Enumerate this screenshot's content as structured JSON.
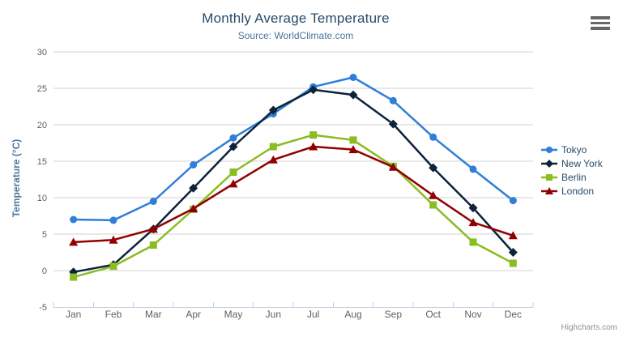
{
  "header": {
    "title": "Monthly Average Temperature",
    "subtitle": "Source: WorldClimate.com"
  },
  "credits": "Highcharts.com",
  "export_menu": {
    "icon": "hamburger-icon"
  },
  "chart_data": {
    "type": "line",
    "title": "Monthly Average Temperature",
    "subtitle": "Source: WorldClimate.com",
    "categories": [
      "Jan",
      "Feb",
      "Mar",
      "Apr",
      "May",
      "Jun",
      "Jul",
      "Aug",
      "Sep",
      "Oct",
      "Nov",
      "Dec"
    ],
    "xlabel": "",
    "ylabel": "Temperature (°C)",
    "ylim": [
      -5,
      30
    ],
    "ytick_interval": 5,
    "grid": "horizontal",
    "legend_position": "right",
    "series": [
      {
        "name": "Tokyo",
        "color": "#2f7ed8",
        "marker": "circle",
        "values": [
          7.0,
          6.9,
          9.5,
          14.5,
          18.2,
          21.5,
          25.2,
          26.5,
          23.3,
          18.3,
          13.9,
          9.6
        ]
      },
      {
        "name": "New York",
        "color": "#0d233a",
        "marker": "diamond",
        "values": [
          -0.2,
          0.8,
          5.7,
          11.3,
          17.0,
          22.0,
          24.8,
          24.1,
          20.1,
          14.1,
          8.6,
          2.5
        ]
      },
      {
        "name": "Berlin",
        "color": "#8bbc21",
        "marker": "square",
        "values": [
          -0.9,
          0.6,
          3.5,
          8.4,
          13.5,
          17.0,
          18.6,
          17.9,
          14.3,
          9.0,
          3.9,
          1.0
        ]
      },
      {
        "name": "London",
        "color": "#910000",
        "marker": "triangle",
        "values": [
          3.9,
          4.2,
          5.7,
          8.5,
          11.9,
          15.2,
          17.0,
          16.6,
          14.2,
          10.3,
          6.6,
          4.8
        ]
      }
    ],
    "colors": {
      "grid": "#d0d0d0",
      "axis_line": "#c0d0e0",
      "axis_label": "#606060",
      "title": "#274b6d",
      "subtitle": "#4d759e",
      "axis_title": "#4d759e",
      "credits": "#909090"
    }
  }
}
